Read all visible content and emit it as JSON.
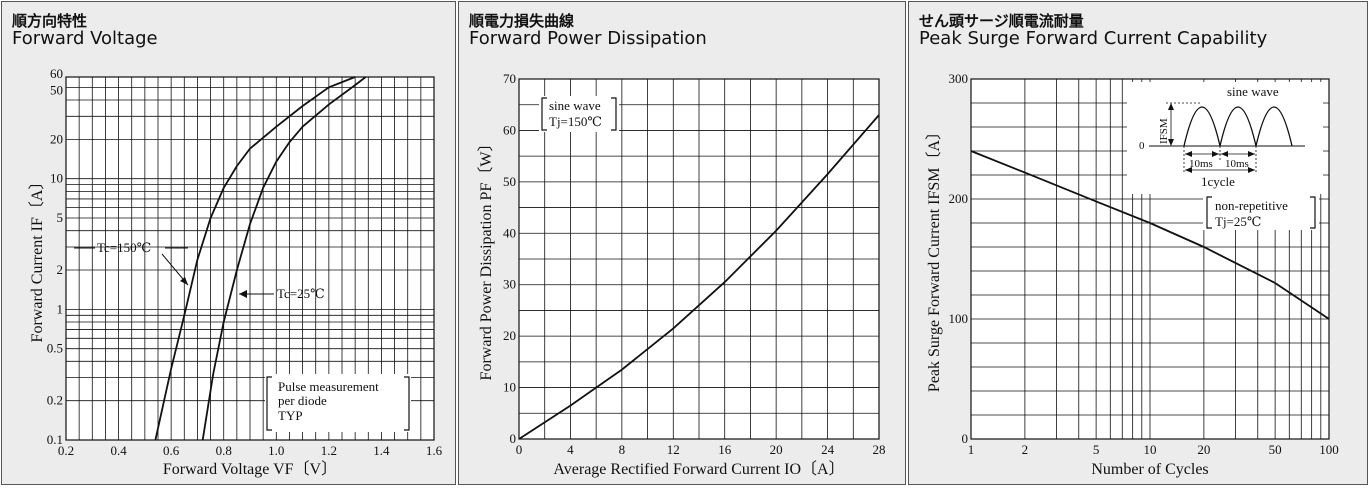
{
  "chart_data": [
    {
      "type": "line",
      "title_jp": "順方向特性",
      "title": "Forward Voltage",
      "xlabel": "Forward Voltage VF〔V〕",
      "ylabel": "Forward Current IF〔A〕",
      "xlim": [
        0.2,
        1.6
      ],
      "ylim": [
        0.1,
        60
      ],
      "yscale": "log",
      "grid": true,
      "x_ticks": [
        "0.2",
        "0.4",
        "0.6",
        "0.8",
        "1.0",
        "1.2",
        "1.4",
        "1.6"
      ],
      "y_ticks": [
        "0.1",
        "0.2",
        "0.5",
        "1",
        "2",
        "5",
        "10",
        "20",
        "50",
        "60"
      ],
      "series": [
        {
          "name": "Tc=150℃",
          "x": [
            0.54,
            0.6,
            0.65,
            0.7,
            0.75,
            0.8,
            0.85,
            0.9,
            1.0,
            1.1,
            1.2,
            1.3
          ],
          "y": [
            0.1,
            0.35,
            0.9,
            2.4,
            5,
            8.5,
            12.5,
            17,
            25,
            36,
            50,
            60
          ]
        },
        {
          "name": "Tc=25℃",
          "x": [
            0.72,
            0.76,
            0.8,
            0.85,
            0.9,
            0.95,
            1.0,
            1.05,
            1.1,
            1.2,
            1.3,
            1.34
          ],
          "y": [
            0.1,
            0.32,
            0.8,
            2,
            4.5,
            8.5,
            13.5,
            19,
            25,
            37,
            52,
            60
          ]
        }
      ],
      "annotations": [
        "Pulse measurement",
        "per diode",
        "TYP"
      ]
    },
    {
      "type": "line",
      "title_jp": "順電力損失曲線",
      "title": "Forward Power Dissipation",
      "xlabel": "Average Rectified Forward Current IO〔A〕",
      "ylabel": "Forward Power Dissipation PF〔W〕",
      "xlim": [
        0,
        28
      ],
      "ylim": [
        0,
        70
      ],
      "grid": true,
      "x_ticks": [
        "0",
        "4",
        "8",
        "12",
        "16",
        "20",
        "24",
        "28"
      ],
      "y_ticks": [
        "0",
        "10",
        "20",
        "30",
        "40",
        "50",
        "60",
        "70"
      ],
      "series": [
        {
          "name": "",
          "x": [
            0,
            4,
            8,
            12,
            16,
            20,
            24,
            28
          ],
          "y": [
            0,
            6.5,
            13.5,
            21.5,
            30.5,
            40.5,
            51.5,
            63
          ]
        }
      ],
      "annotations": [
        "sine wave",
        "Tj=150℃"
      ]
    },
    {
      "type": "line",
      "title_jp": "せん頭サージ順電流耐量",
      "title": "Peak Surge Forward Current Capability",
      "xlabel": "Number of Cycles",
      "ylabel": "Peak Surge Forward Current IFSM〔A〕",
      "xlim": [
        1,
        100
      ],
      "xscale": "log",
      "ylim": [
        0,
        300
      ],
      "grid": true,
      "x_ticks": [
        "1",
        "2",
        "5",
        "10",
        "20",
        "50",
        "100"
      ],
      "y_ticks": [
        "0",
        "100",
        "200",
        "300"
      ],
      "series": [
        {
          "name": "",
          "x": [
            1,
            2,
            5,
            10,
            20,
            50,
            100
          ],
          "y": [
            240,
            222,
            198,
            180,
            160,
            130,
            100
          ]
        }
      ],
      "annotations": [
        "sine wave",
        "IFSM",
        "10ms",
        "10ms",
        "1cycle",
        "non-repetitive",
        "Tj=25℃",
        "0"
      ]
    }
  ]
}
